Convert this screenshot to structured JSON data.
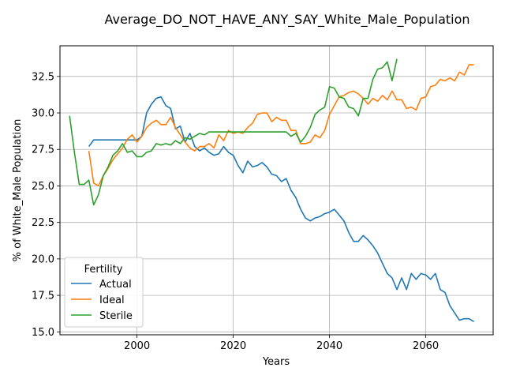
{
  "chart_data": {
    "type": "line",
    "title": "Average_DO_NOT_HAVE_ANY_SAY_White_Male_Population",
    "xlabel": "Years",
    "ylabel": "% of White_Male Population",
    "xlim": [
      1984,
      2074
    ],
    "ylim": [
      14.8,
      34.6
    ],
    "xticks": [
      2000,
      2020,
      2040,
      2060
    ],
    "yticks": [
      15.0,
      17.5,
      20.0,
      22.5,
      25.0,
      27.5,
      30.0,
      32.5
    ],
    "grid": true,
    "legend": {
      "title": "Fertility",
      "placement": "lower-left"
    },
    "series": [
      {
        "name": "Actual",
        "color": "#1f77b4",
        "x": [
          1990,
          1991,
          1992,
          1993,
          1994,
          1995,
          1996,
          1997,
          1998,
          1999,
          2000,
          2001,
          2002,
          2003,
          2004,
          2005,
          2006,
          2007,
          2008,
          2009,
          2010,
          2011,
          2012,
          2013,
          2014,
          2015,
          2016,
          2017,
          2018,
          2019,
          2020,
          2021,
          2022,
          2023,
          2024,
          2025,
          2026,
          2027,
          2028,
          2029,
          2030,
          2031,
          2032,
          2033,
          2034,
          2035,
          2036,
          2037,
          2038,
          2039,
          2040,
          2041,
          2042,
          2043,
          2044,
          2045,
          2046,
          2047,
          2048,
          2049,
          2050,
          2051,
          2052,
          2053,
          2054,
          2055,
          2056,
          2057,
          2058,
          2059,
          2060,
          2061,
          2062,
          2063,
          2064,
          2065,
          2066,
          2067,
          2068,
          2069,
          2070
        ],
        "y": [
          27.7,
          28.15,
          28.15,
          28.15,
          28.15,
          28.15,
          28.15,
          28.15,
          28.15,
          28.15,
          28.15,
          28.4,
          30.0,
          30.6,
          31.0,
          31.1,
          30.5,
          30.3,
          28.9,
          29.1,
          28.0,
          28.6,
          27.7,
          27.4,
          27.6,
          27.3,
          27.1,
          27.2,
          27.7,
          27.3,
          27.1,
          26.4,
          25.9,
          26.7,
          26.3,
          26.4,
          26.6,
          26.3,
          25.8,
          25.7,
          25.3,
          25.5,
          24.7,
          24.2,
          23.4,
          22.8,
          22.6,
          22.8,
          22.9,
          23.1,
          23.2,
          23.4,
          23.0,
          22.6,
          21.8,
          21.2,
          21.2,
          21.6,
          21.3,
          20.9,
          20.4,
          19.7,
          19.0,
          18.7,
          17.9,
          18.7,
          17.9,
          19.0,
          18.6,
          19.0,
          18.9,
          18.6,
          19.0,
          17.9,
          17.7,
          16.8,
          16.3,
          15.8,
          15.9,
          15.9,
          15.7
        ]
      },
      {
        "name": "Ideal",
        "color": "#ff7f0e",
        "x": [
          1990,
          1991,
          1992,
          1993,
          1994,
          1995,
          1996,
          1997,
          1998,
          1999,
          2000,
          2001,
          2002,
          2003,
          2004,
          2005,
          2006,
          2007,
          2008,
          2009,
          2010,
          2011,
          2012,
          2013,
          2014,
          2015,
          2016,
          2017,
          2018,
          2019,
          2020,
          2021,
          2022,
          2023,
          2024,
          2025,
          2026,
          2027,
          2028,
          2029,
          2030,
          2031,
          2032,
          2033,
          2034,
          2035,
          2036,
          2037,
          2038,
          2039,
          2040,
          2041,
          2042,
          2043,
          2044,
          2045,
          2046,
          2047,
          2048,
          2049,
          2050,
          2051,
          2052,
          2053,
          2054,
          2055,
          2056,
          2057,
          2058,
          2059,
          2060,
          2061,
          2062,
          2063,
          2064,
          2065,
          2066,
          2067,
          2068,
          2069,
          2070
        ],
        "y": [
          27.4,
          25.2,
          25.0,
          25.7,
          26.2,
          26.8,
          27.2,
          27.6,
          28.2,
          28.5,
          28.0,
          28.4,
          29.0,
          29.3,
          29.5,
          29.2,
          29.2,
          29.7,
          29.0,
          28.5,
          28.0,
          27.6,
          27.4,
          27.7,
          27.7,
          27.9,
          27.6,
          28.5,
          28.1,
          28.8,
          28.6,
          28.7,
          28.6,
          29.0,
          29.3,
          29.9,
          30.0,
          30.0,
          29.4,
          29.7,
          29.5,
          29.5,
          28.8,
          28.8,
          27.9,
          27.9,
          28.0,
          28.5,
          28.3,
          28.8,
          29.9,
          30.5,
          31.1,
          31.2,
          31.4,
          31.5,
          31.3,
          31.0,
          30.6,
          31.0,
          30.8,
          31.2,
          30.9,
          31.5,
          30.9,
          30.9,
          30.3,
          30.4,
          30.2,
          31.0,
          31.1,
          31.8,
          31.9,
          32.3,
          32.2,
          32.4,
          32.2,
          32.8,
          32.6,
          33.3,
          33.3
        ]
      },
      {
        "name": "Sterile",
        "color": "#2ca02c",
        "x": [
          1986,
          1987,
          1988,
          1989,
          1990,
          1991,
          1992,
          1993,
          1994,
          1995,
          1996,
          1997,
          1998,
          1999,
          2000,
          2001,
          2002,
          2003,
          2004,
          2005,
          2006,
          2007,
          2008,
          2009,
          2010,
          2011,
          2012,
          2013,
          2014,
          2015,
          2016,
          2017,
          2018,
          2019,
          2020,
          2021,
          2022,
          2023,
          2024,
          2025,
          2026,
          2027,
          2028,
          2029,
          2030,
          2031,
          2032,
          2033,
          2034,
          2035,
          2036,
          2037,
          2038,
          2039,
          2040,
          2041,
          2042,
          2043,
          2044,
          2045,
          2046,
          2047,
          2048,
          2049,
          2050,
          2051,
          2052,
          2053,
          2054
        ],
        "y": [
          29.8,
          27.3,
          25.1,
          25.1,
          25.4,
          23.7,
          24.4,
          25.7,
          26.3,
          27.1,
          27.4,
          27.9,
          27.3,
          27.4,
          27.0,
          27.0,
          27.3,
          27.4,
          27.9,
          27.8,
          27.9,
          27.8,
          28.1,
          27.9,
          28.3,
          28.2,
          28.4,
          28.6,
          28.5,
          28.7,
          28.7,
          28.7,
          28.7,
          28.7,
          28.7,
          28.7,
          28.7,
          28.7,
          28.7,
          28.7,
          28.7,
          28.7,
          28.7,
          28.7,
          28.7,
          28.7,
          28.4,
          28.6,
          28.0,
          28.4,
          29.0,
          29.9,
          30.2,
          30.4,
          31.8,
          31.7,
          31.1,
          31.0,
          30.4,
          30.3,
          29.8,
          31.0,
          31.0,
          32.3,
          33.0,
          33.1,
          33.5,
          32.2,
          33.7
        ]
      }
    ]
  }
}
